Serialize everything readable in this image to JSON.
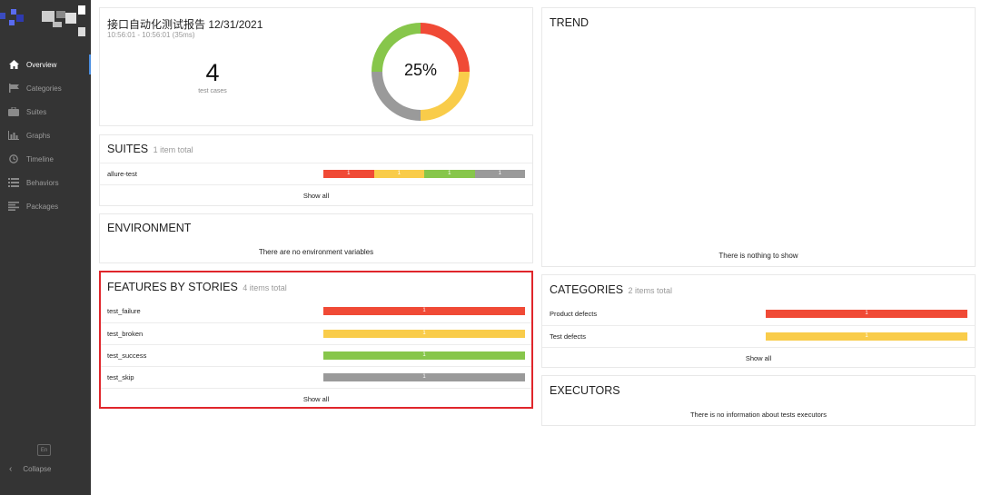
{
  "sidebar": {
    "items": [
      {
        "label": "Overview",
        "icon": "home-icon",
        "active": true
      },
      {
        "label": "Categories",
        "icon": "flag-icon"
      },
      {
        "label": "Suites",
        "icon": "briefcase-icon"
      },
      {
        "label": "Graphs",
        "icon": "bar-chart-icon"
      },
      {
        "label": "Timeline",
        "icon": "clock-icon"
      },
      {
        "label": "Behaviors",
        "icon": "list-icon"
      },
      {
        "label": "Packages",
        "icon": "align-left-icon"
      }
    ],
    "lang": "En",
    "collapse": "Collapse"
  },
  "summary": {
    "title": "接口自动化测试报告 12/31/2021",
    "time": "10:56:01 - 10:56:01 (35ms)",
    "count": "4",
    "count_label": "test cases",
    "percent": "25%",
    "donut": [
      {
        "status": "failed",
        "color": "#f04a36",
        "fraction": 0.25
      },
      {
        "status": "broken",
        "color": "#f9cc4a",
        "fraction": 0.25
      },
      {
        "status": "skipped",
        "color": "#9a9a9a",
        "fraction": 0.25
      },
      {
        "status": "passed",
        "color": "#87c64b",
        "fraction": 0.25
      }
    ]
  },
  "suites": {
    "title": "SUITES",
    "subtitle": "1 item total",
    "rows": [
      {
        "name": "allure-test",
        "counts": [
          "1",
          "1",
          "1",
          "1"
        ]
      }
    ],
    "show_all": "Show all"
  },
  "environment": {
    "title": "ENVIRONMENT",
    "message": "There are no environment variables"
  },
  "features": {
    "title": "FEATURES BY STORIES",
    "subtitle": "4 items total",
    "rows": [
      {
        "name": "test_failure",
        "count": "1",
        "color": "#f04a36"
      },
      {
        "name": "test_broken",
        "count": "1",
        "color": "#f9cc4a"
      },
      {
        "name": "test_success",
        "count": "1",
        "color": "#87c64b"
      },
      {
        "name": "test_skip",
        "count": "1",
        "color": "#9a9a9a"
      }
    ],
    "show_all": "Show all"
  },
  "trend": {
    "title": "TREND",
    "message": "There is nothing to show"
  },
  "categories": {
    "title": "CATEGORIES",
    "subtitle": "2 items total",
    "rows": [
      {
        "name": "Product defects",
        "count": "1",
        "color": "#f04a36"
      },
      {
        "name": "Test defects",
        "count": "1",
        "color": "#f9cc4a"
      }
    ],
    "show_all": "Show all"
  },
  "executors": {
    "title": "EXECUTORS",
    "message": "There is no information about tests executors"
  },
  "colors": {
    "highlight": "#e0262b",
    "accent": "#4a8ee0",
    "sidebar": "#343434"
  }
}
